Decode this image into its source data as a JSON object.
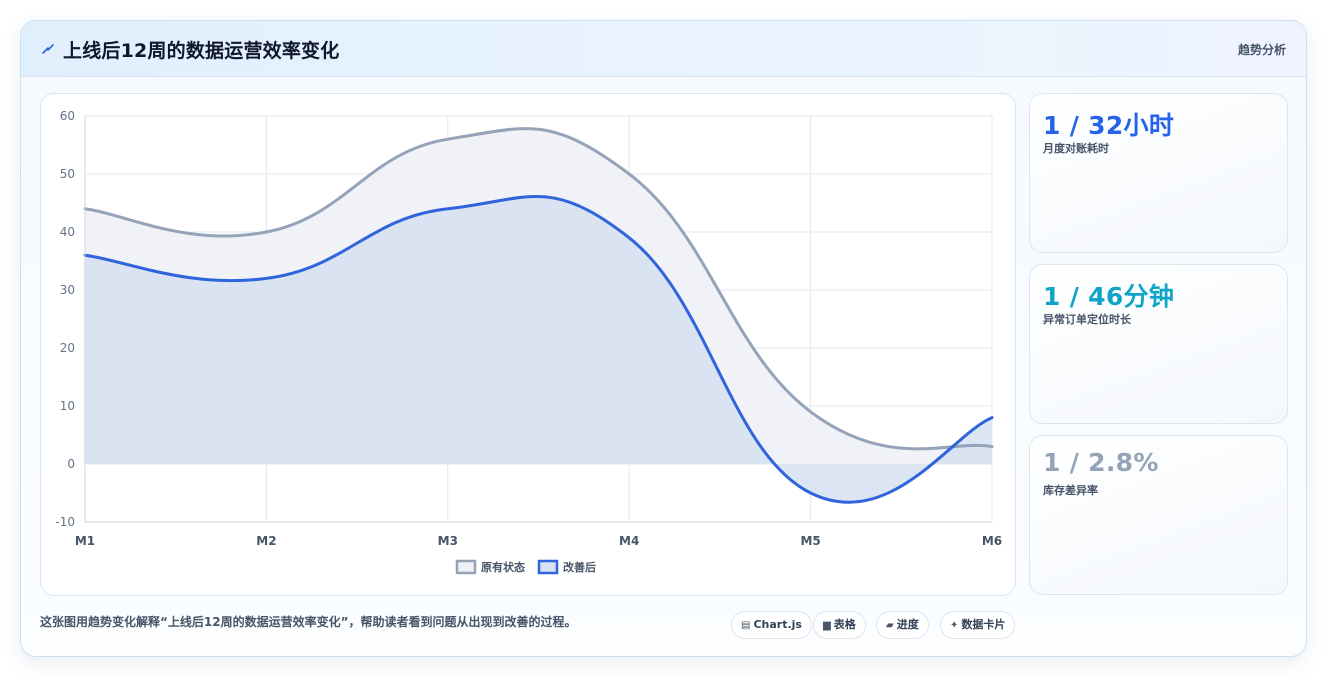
{
  "header": {
    "icon": "lightning-icon",
    "title": "上线后12周的数据运营效率变化",
    "link_label": "趋势分析"
  },
  "chart_data": {
    "type": "area",
    "categories": [
      "M1",
      "M2",
      "M3",
      "M4",
      "M5",
      "M6"
    ],
    "series": [
      {
        "name": "原有状态",
        "values": [
          44,
          40,
          56,
          50,
          9,
          3
        ],
        "color": "#94a3b8",
        "fill": "#eef1f6"
      },
      {
        "name": "改善后",
        "values": [
          36,
          32,
          44,
          39,
          -5,
          8
        ],
        "color": "#2f64dc",
        "fill": "#d6e1f1"
      }
    ],
    "ylim": [
      -10,
      60
    ],
    "yticks": [
      -10,
      0,
      10,
      20,
      30,
      40,
      50,
      60
    ],
    "grid": true,
    "legend_position": "bottom",
    "smooth": true
  },
  "stats": [
    {
      "value": "1 / 32小时",
      "label": "月度对账耗时",
      "color": "#2563eb"
    },
    {
      "value": "1 / 46分钟",
      "label": "异常订单定位时长",
      "color": "#0ea5c6"
    },
    {
      "value": "1 / 2.8%",
      "label": "库存差异率",
      "color": "#94a3b8"
    }
  ],
  "footer": {
    "caption": "这张图用趋势变化解释“上线后12周的数据运营效率变化”，帮助读者看到问题从出现到改善的过程。",
    "tags": [
      {
        "icon": "chart-icon",
        "glyph": "▤",
        "label": "Chart.js"
      },
      {
        "icon": "table-icon",
        "glyph": "▆",
        "label": "表格"
      },
      {
        "icon": "progress-icon",
        "glyph": "▰",
        "label": "进度"
      },
      {
        "icon": "sparkle-icon",
        "glyph": "✦",
        "label": "数据卡片"
      }
    ]
  }
}
